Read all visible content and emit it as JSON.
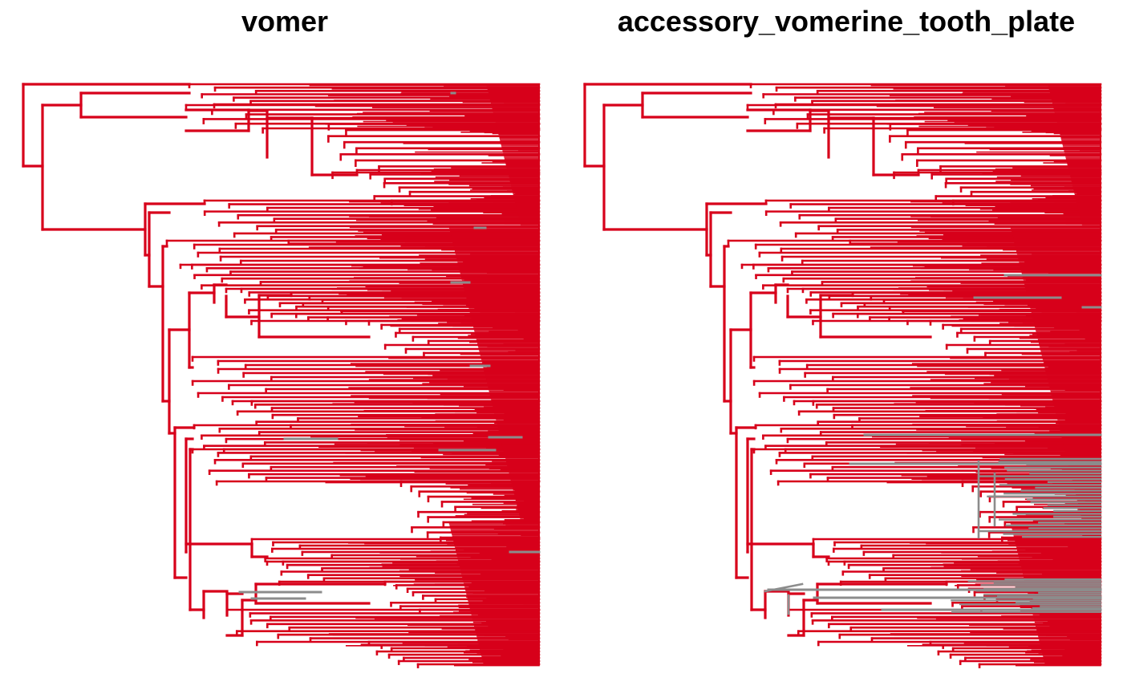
{
  "panels": [
    {
      "title": "vomer"
    },
    {
      "title": "accessory_vomerine_tooth_plate"
    }
  ],
  "colors": {
    "state_present": "#d7001a",
    "state_other": "#8c8c8c"
  }
}
